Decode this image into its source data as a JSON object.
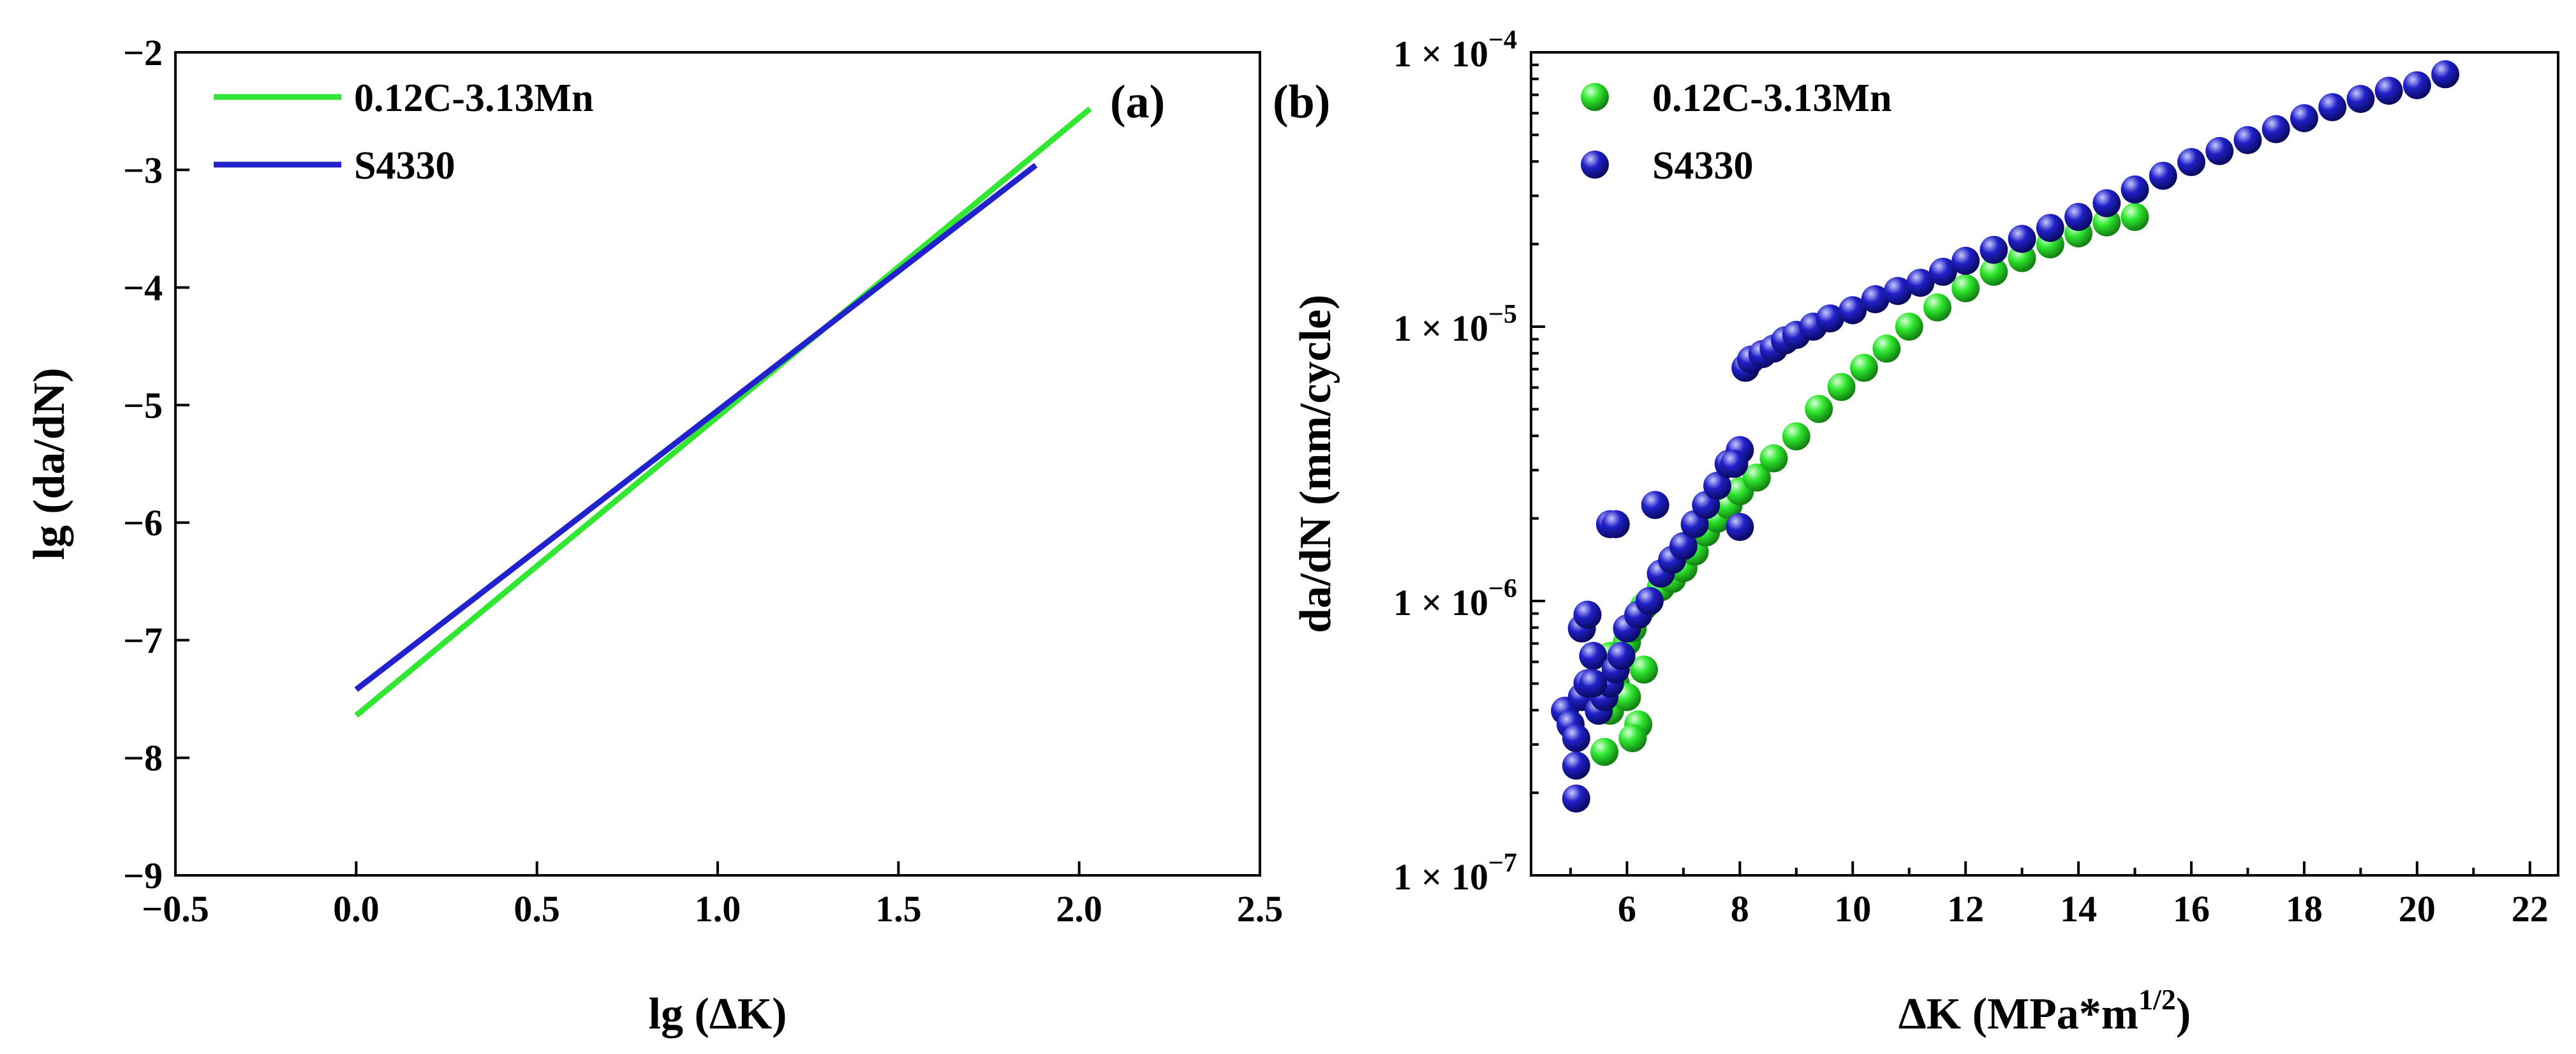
{
  "chart_data": [
    {
      "id": "a",
      "type": "line",
      "panel_label": "(a)",
      "xlabel": "lg (ΔK)",
      "ylabel": "lg (da/dN)",
      "xlim": [
        -0.5,
        2.5
      ],
      "ylim": [
        -9,
        -2
      ],
      "xticks": [
        -0.5,
        0.0,
        0.5,
        1.0,
        1.5,
        2.0,
        2.5
      ],
      "xtick_labels": [
        "−0.5",
        "0.0",
        "0.5",
        "1.0",
        "1.5",
        "2.0",
        "2.5"
      ],
      "yticks": [
        -9,
        -8,
        -7,
        -6,
        -5,
        -4,
        -3,
        -2
      ],
      "ytick_labels": [
        "−9",
        "−8",
        "−7",
        "−6",
        "−5",
        "−4",
        "−3",
        "−2"
      ],
      "legend_position": "top-left",
      "series": [
        {
          "name": "0.12C-3.13Mn",
          "color": "#33e633",
          "x": [
            0.0,
            2.03
          ],
          "y": [
            -7.64,
            -2.48
          ]
        },
        {
          "name": "S4330",
          "color": "#2222cc",
          "x": [
            0.0,
            1.88
          ],
          "y": [
            -7.42,
            -2.96
          ]
        }
      ]
    },
    {
      "id": "b",
      "type": "scatter",
      "panel_label": "(b)",
      "xlabel": "ΔK (MPa*m",
      "xlabel_superscript": "1/2",
      "xlabel_suffix": ")",
      "ylabel": "da/dN (mm/cycle)",
      "xlim": [
        4.3,
        22.5
      ],
      "ylim_log10": [
        -7,
        -4
      ],
      "xticks": [
        6,
        8,
        10,
        12,
        14,
        16,
        18,
        20,
        22
      ],
      "xtick_labels": [
        "6",
        "8",
        "10",
        "12",
        "14",
        "16",
        "18",
        "20",
        "22"
      ],
      "yticks_log10": [
        -7,
        -6,
        -5,
        -4
      ],
      "ytick_labels": [
        {
          "mantissa": "1 × 10",
          "exponent": "−7"
        },
        {
          "mantissa": "1 × 10",
          "exponent": "−6"
        },
        {
          "mantissa": "1 × 10",
          "exponent": "−5"
        },
        {
          "mantissa": "1 × 10",
          "exponent": "−4"
        }
      ],
      "legend_position": "top-left",
      "series": [
        {
          "name": "0.12C-3.13Mn",
          "color": "#2ee62e",
          "x": [
            5.6,
            5.7,
            5.8,
            5.9,
            6.0,
            6.1,
            6.2,
            6.3,
            6.4,
            6.6,
            6.8,
            7.0,
            7.2,
            7.4,
            7.6,
            7.8,
            8.0,
            8.3,
            8.6,
            9.0,
            9.4,
            9.8,
            10.2,
            10.6,
            11.0,
            11.5,
            12.0,
            12.5,
            13.0,
            13.5,
            14.0,
            14.5,
            15.0,
            6.0,
            6.2,
            6.1,
            5.7,
            6.3
          ],
          "log10_y": [
            -6.55,
            -6.4,
            -6.3,
            -6.2,
            -6.15,
            -6.1,
            -6.05,
            -6.02,
            -6.0,
            -5.95,
            -5.92,
            -5.88,
            -5.82,
            -5.75,
            -5.7,
            -5.65,
            -5.6,
            -5.55,
            -5.48,
            -5.4,
            -5.3,
            -5.22,
            -5.15,
            -5.08,
            -5.0,
            -4.93,
            -4.86,
            -4.8,
            -4.75,
            -4.7,
            -4.66,
            -4.62,
            -4.6,
            -6.35,
            -6.45,
            -6.5,
            -6.2,
            -6.25
          ]
        },
        {
          "name": "S4330",
          "color": "#2020c8",
          "x": [
            4.9,
            5.0,
            5.1,
            5.2,
            5.3,
            5.4,
            5.5,
            5.6,
            5.7,
            5.8,
            5.9,
            6.0,
            6.2,
            6.4,
            6.6,
            6.8,
            7.0,
            7.2,
            7.4,
            7.6,
            7.8,
            8.0,
            8.1,
            8.2,
            8.4,
            8.6,
            8.8,
            9.0,
            9.3,
            9.6,
            10.0,
            10.4,
            10.8,
            11.2,
            11.6,
            12.0,
            12.5,
            13.0,
            13.5,
            14.0,
            14.5,
            15.0,
            15.5,
            16.0,
            16.5,
            17.0,
            17.5,
            18.0,
            18.5,
            19.0,
            19.5,
            20.0,
            20.5,
            5.1,
            5.2,
            5.3,
            5.7,
            5.8,
            6.5,
            7.9,
            8.0,
            5.1,
            5.4
          ],
          "log10_y": [
            -6.4,
            -6.45,
            -6.5,
            -6.35,
            -6.3,
            -6.2,
            -6.4,
            -6.35,
            -6.3,
            -6.25,
            -6.2,
            -6.1,
            -6.05,
            -6.0,
            -5.9,
            -5.85,
            -5.8,
            -5.72,
            -5.65,
            -5.58,
            -5.5,
            -5.45,
            -5.15,
            -5.12,
            -5.1,
            -5.08,
            -5.05,
            -5.03,
            -5.0,
            -4.97,
            -4.94,
            -4.9,
            -4.87,
            -4.84,
            -4.8,
            -4.76,
            -4.72,
            -4.68,
            -4.64,
            -4.6,
            -4.55,
            -4.5,
            -4.45,
            -4.4,
            -4.36,
            -4.32,
            -4.28,
            -4.24,
            -4.2,
            -4.17,
            -4.14,
            -4.12,
            -4.08,
            -6.72,
            -6.1,
            -6.05,
            -5.72,
            -5.72,
            -5.65,
            -5.5,
            -5.73,
            -6.6,
            -6.3
          ]
        }
      ]
    }
  ]
}
